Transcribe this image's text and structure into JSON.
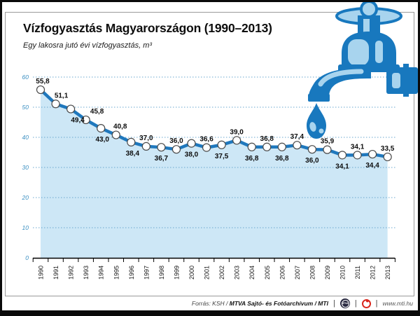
{
  "title": "Vízfogyasztás Magyarországon (1990–2013)",
  "subtitle": "Egy lakosra jutó évi vízfogyasztás, m³",
  "chart_data": {
    "type": "line",
    "x": [
      "1990",
      "1991",
      "1992",
      "1993",
      "1994",
      "1995",
      "1996",
      "1997",
      "1998",
      "1999",
      "2000",
      "2001",
      "2002",
      "2003",
      "2004",
      "2005",
      "2006",
      "2007",
      "2008",
      "2009",
      "2010",
      "2011",
      "2012",
      "2013"
    ],
    "values": [
      55.8,
      51.1,
      49.4,
      45.8,
      43.0,
      40.8,
      38.4,
      37.0,
      36.7,
      36.0,
      38.0,
      36.6,
      37.5,
      39.0,
      36.8,
      36.8,
      36.8,
      37.4,
      36.0,
      35.9,
      34.1,
      34.1,
      34.4,
      33.5
    ],
    "value_labels": [
      "55,8",
      "51,1",
      "49,4",
      "45,8",
      "43,0",
      "40,8",
      "38,4",
      "37,0",
      "36,7",
      "36,0",
      "38,0",
      "36,6",
      "37,5",
      "39,0",
      "36,8",
      "36,8",
      "36,8",
      "37,4",
      "36,0",
      "35,9",
      "34,1",
      "34,1",
      "34,4",
      "33,5"
    ],
    "label_positions": [
      "above",
      "above",
      "below",
      "above",
      "below",
      "above",
      "below",
      "above",
      "below",
      "above",
      "below",
      "above",
      "below",
      "above",
      "below",
      "above",
      "below",
      "above",
      "below",
      "above",
      "below",
      "above",
      "below",
      "above"
    ],
    "label_dx": [
      3,
      8,
      10,
      16,
      2,
      6,
      2,
      0,
      0,
      0,
      0,
      0,
      0,
      0,
      0,
      0,
      0,
      0,
      0,
      0,
      0,
      0,
      0,
      0
    ],
    "title": "Vízfogyasztás Magyarországon (1990–2013)",
    "xlabel": "",
    "ylabel": "Egy lakosra jutó évi vízfogyasztás, m³",
    "ylim": [
      0,
      60
    ],
    "yticks": [
      0,
      10,
      20,
      30,
      40,
      50,
      60
    ],
    "grid": true,
    "legend": "none",
    "line_color": "#1f78bd",
    "area_color": "#cde7f6",
    "grid_color": "#69a7cf",
    "marker_fill": "#ffffff",
    "marker_stroke": "#4a4a4a"
  },
  "decor": {
    "faucet_main_color": "#1878be",
    "faucet_light_color": "#a8d4ee"
  },
  "footer": {
    "source_prefix": "Forrás: KSH / ",
    "source_bold": "MTVA Sajtó- és Fotóarchívum / MTI",
    "separator": "|",
    "mtva_logo_text": "MTVA",
    "website": "www.mti.hu"
  }
}
